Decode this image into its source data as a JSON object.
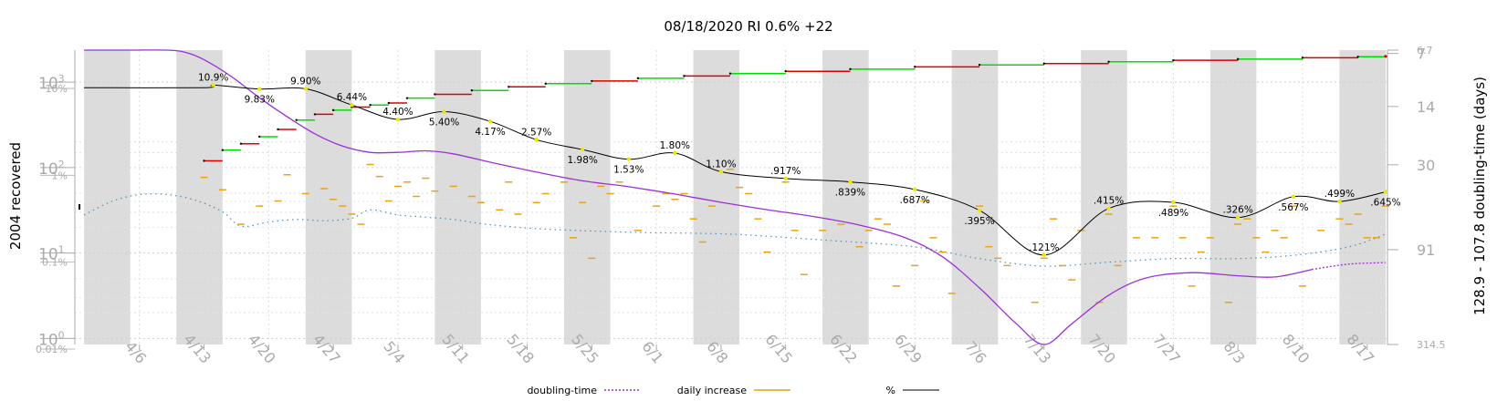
{
  "chart_data": {
    "type": "line",
    "title": "08/18/2020 RI 0.6% +22",
    "ylabel_left": "2004 recovered",
    "ylabel_right": "128.9 - 107.8 doubling-time (days)",
    "x_tick_labels": [
      "4/6",
      "4/13",
      "4/20",
      "4/27",
      "5/4",
      "5/11",
      "5/18",
      "5/25",
      "6/1",
      "6/8",
      "6/15",
      "6/22",
      "6/29",
      "7/6",
      "7/13",
      "7/20",
      "7/27",
      "8/3",
      "8/10",
      "8/17"
    ],
    "left_axis_ticks": [
      {
        "base": "10",
        "exp": "3"
      },
      {
        "base": "10",
        "exp": "2"
      },
      {
        "base": "10",
        "exp": "1"
      },
      {
        "base": "10",
        "exp": "0"
      }
    ],
    "left_pct_ticks": [
      "10%",
      "1%",
      "0.1%",
      "0.01%"
    ],
    "right_axis_ticks": [
      "6.7",
      "7",
      "14",
      "30",
      "91",
      "314.5"
    ],
    "legend": [
      {
        "label": "doubling-time",
        "color": "#9b30d9",
        "style": "dotted"
      },
      {
        "label": "daily increase",
        "color": "#e8a317",
        "style": "solid"
      },
      {
        "label": "%",
        "color": "#000000",
        "style": "solid"
      }
    ],
    "percent_series": {
      "name": "%",
      "points": [
        {
          "day": 14,
          "value": 10.9,
          "label": "10.9%"
        },
        {
          "day": 19,
          "value": 9.83,
          "label": "9.83%"
        },
        {
          "day": 24,
          "value": 9.9,
          "label": "9.90%"
        },
        {
          "day": 29,
          "value": 6.44,
          "label": "6.44%"
        },
        {
          "day": 34,
          "value": 4.4,
          "label": "4.40%"
        },
        {
          "day": 39,
          "value": 5.4,
          "label": "5.40%"
        },
        {
          "day": 44,
          "value": 4.17,
          "label": "4.17%"
        },
        {
          "day": 49,
          "value": 2.57,
          "label": "2.57%"
        },
        {
          "day": 54,
          "value": 1.98,
          "label": "1.98%"
        },
        {
          "day": 59,
          "value": 1.53,
          "label": "1.53%"
        },
        {
          "day": 64,
          "value": 1.8,
          "label": "1.80%"
        },
        {
          "day": 69,
          "value": 1.1,
          "label": "1.10%"
        },
        {
          "day": 76,
          "value": 0.917,
          "label": ".917%"
        },
        {
          "day": 83,
          "value": 0.839,
          "label": ".839%"
        },
        {
          "day": 90,
          "value": 0.687,
          "label": ".687%"
        },
        {
          "day": 97,
          "value": 0.395,
          "label": ".395%"
        },
        {
          "day": 104,
          "value": 0.121,
          "label": ".121%"
        },
        {
          "day": 111,
          "value": 0.415,
          "label": ".415%"
        },
        {
          "day": 118,
          "value": 0.489,
          "label": ".489%"
        },
        {
          "day": 125,
          "value": 0.326,
          "label": ".326%"
        },
        {
          "day": 131,
          "value": 0.567,
          "label": ".567%"
        },
        {
          "day": 136,
          "value": 0.499,
          "label": ".499%"
        },
        {
          "day": 141,
          "value": 0.645,
          "label": ".645%"
        }
      ]
    },
    "recovered_cumulative": [
      {
        "day": 13,
        "value": 120
      },
      {
        "day": 15,
        "value": 160
      },
      {
        "day": 17,
        "value": 190
      },
      {
        "day": 19,
        "value": 230
      },
      {
        "day": 21,
        "value": 280
      },
      {
        "day": 23,
        "value": 360
      },
      {
        "day": 25,
        "value": 420
      },
      {
        "day": 27,
        "value": 470
      },
      {
        "day": 29,
        "value": 510
      },
      {
        "day": 31,
        "value": 540
      },
      {
        "day": 33,
        "value": 570
      },
      {
        "day": 35,
        "value": 650
      },
      {
        "day": 38,
        "value": 720
      },
      {
        "day": 42,
        "value": 800
      },
      {
        "day": 46,
        "value": 880
      },
      {
        "day": 50,
        "value": 960
      },
      {
        "day": 55,
        "value": 1030
      },
      {
        "day": 60,
        "value": 1110
      },
      {
        "day": 65,
        "value": 1180
      },
      {
        "day": 70,
        "value": 1260
      },
      {
        "day": 76,
        "value": 1340
      },
      {
        "day": 83,
        "value": 1420
      },
      {
        "day": 90,
        "value": 1510
      },
      {
        "day": 97,
        "value": 1590
      },
      {
        "day": 104,
        "value": 1650
      },
      {
        "day": 111,
        "value": 1730
      },
      {
        "day": 118,
        "value": 1800
      },
      {
        "day": 125,
        "value": 1860
      },
      {
        "day": 132,
        "value": 1930
      },
      {
        "day": 138,
        "value": 1980
      },
      {
        "day": 141,
        "value": 2004
      }
    ],
    "daily_increase": [
      {
        "day": 13,
        "value": 45
      },
      {
        "day": 15,
        "value": 33
      },
      {
        "day": 17,
        "value": 14
      },
      {
        "day": 19,
        "value": 22
      },
      {
        "day": 21,
        "value": 25
      },
      {
        "day": 22,
        "value": 48
      },
      {
        "day": 24,
        "value": 30
      },
      {
        "day": 26,
        "value": 34
      },
      {
        "day": 27,
        "value": 26
      },
      {
        "day": 28,
        "value": 22
      },
      {
        "day": 29,
        "value": 18
      },
      {
        "day": 30,
        "value": 14
      },
      {
        "day": 31,
        "value": 62
      },
      {
        "day": 32,
        "value": 46
      },
      {
        "day": 33,
        "value": 25
      },
      {
        "day": 34,
        "value": 36
      },
      {
        "day": 35,
        "value": 40
      },
      {
        "day": 36,
        "value": 28
      },
      {
        "day": 37,
        "value": 44
      },
      {
        "day": 38,
        "value": 32
      },
      {
        "day": 40,
        "value": 36
      },
      {
        "day": 42,
        "value": 28
      },
      {
        "day": 43,
        "value": 24
      },
      {
        "day": 45,
        "value": 20
      },
      {
        "day": 46,
        "value": 40
      },
      {
        "day": 47,
        "value": 18
      },
      {
        "day": 49,
        "value": 24
      },
      {
        "day": 50,
        "value": 30
      },
      {
        "day": 52,
        "value": 40
      },
      {
        "day": 53,
        "value": 10
      },
      {
        "day": 54,
        "value": 24
      },
      {
        "day": 55,
        "value": 6
      },
      {
        "day": 56,
        "value": 36
      },
      {
        "day": 57,
        "value": 30
      },
      {
        "day": 58,
        "value": 40
      },
      {
        "day": 60,
        "value": 12
      },
      {
        "day": 62,
        "value": 22
      },
      {
        "day": 63,
        "value": 30
      },
      {
        "day": 64,
        "value": 26
      },
      {
        "day": 65,
        "value": 30
      },
      {
        "day": 66,
        "value": 16
      },
      {
        "day": 67,
        "value": 9
      },
      {
        "day": 68,
        "value": 22
      },
      {
        "day": 70,
        "value": 55
      },
      {
        "day": 71,
        "value": 35
      },
      {
        "day": 72,
        "value": 30
      },
      {
        "day": 73,
        "value": 16
      },
      {
        "day": 74,
        "value": 7
      },
      {
        "day": 76,
        "value": 40
      },
      {
        "day": 77,
        "value": 12
      },
      {
        "day": 78,
        "value": 4
      },
      {
        "day": 80,
        "value": 12
      },
      {
        "day": 82,
        "value": 14
      },
      {
        "day": 83,
        "value": 40
      },
      {
        "day": 84,
        "value": 8
      },
      {
        "day": 85,
        "value": 12
      },
      {
        "day": 86,
        "value": 16
      },
      {
        "day": 87,
        "value": 14
      },
      {
        "day": 88,
        "value": 3
      },
      {
        "day": 90,
        "value": 5
      },
      {
        "day": 91,
        "value": 25
      },
      {
        "day": 92,
        "value": 10
      },
      {
        "day": 93,
        "value": 7
      },
      {
        "day": 94,
        "value": 2.5
      },
      {
        "day": 97,
        "value": 22
      },
      {
        "day": 98,
        "value": 8
      },
      {
        "day": 99,
        "value": 6
      },
      {
        "day": 100,
        "value": 5
      },
      {
        "day": 103,
        "value": 2
      },
      {
        "day": 104,
        "value": 6
      },
      {
        "day": 105,
        "value": 16
      },
      {
        "day": 106,
        "value": 5
      },
      {
        "day": 107,
        "value": 3.5
      },
      {
        "day": 108,
        "value": 12
      },
      {
        "day": 110,
        "value": 2
      },
      {
        "day": 111,
        "value": 18
      },
      {
        "day": 112,
        "value": 5
      },
      {
        "day": 114,
        "value": 10
      },
      {
        "day": 116,
        "value": 10
      },
      {
        "day": 118,
        "value": 22
      },
      {
        "day": 119,
        "value": 10
      },
      {
        "day": 120,
        "value": 3
      },
      {
        "day": 121,
        "value": 7
      },
      {
        "day": 122,
        "value": 10
      },
      {
        "day": 124,
        "value": 2
      },
      {
        "day": 125,
        "value": 14
      },
      {
        "day": 126,
        "value": 16
      },
      {
        "day": 127,
        "value": 10
      },
      {
        "day": 128,
        "value": 7
      },
      {
        "day": 129,
        "value": 12
      },
      {
        "day": 130,
        "value": 10
      },
      {
        "day": 131,
        "value": 22
      },
      {
        "day": 132,
        "value": 3
      },
      {
        "day": 134,
        "value": 12
      },
      {
        "day": 136,
        "value": 16
      },
      {
        "day": 137,
        "value": 14
      },
      {
        "day": 138,
        "value": 18
      },
      {
        "day": 139,
        "value": 10
      },
      {
        "day": 140,
        "value": 10
      },
      {
        "day": 141,
        "value": 22
      }
    ],
    "doubling_time_days": [
      {
        "day": 0,
        "value": 6.7
      },
      {
        "day": 5,
        "value": 6.7
      },
      {
        "day": 9,
        "value": 6.7
      },
      {
        "day": 11,
        "value": 6.9
      },
      {
        "day": 13,
        "value": 7.6
      },
      {
        "day": 16,
        "value": 9.5
      },
      {
        "day": 19,
        "value": 12.5
      },
      {
        "day": 22,
        "value": 16
      },
      {
        "day": 25,
        "value": 20
      },
      {
        "day": 28,
        "value": 23.5
      },
      {
        "day": 31,
        "value": 25.5
      },
      {
        "day": 34,
        "value": 25.5
      },
      {
        "day": 37,
        "value": 25
      },
      {
        "day": 40,
        "value": 26
      },
      {
        "day": 44,
        "value": 29
      },
      {
        "day": 49,
        "value": 33
      },
      {
        "day": 54,
        "value": 37
      },
      {
        "day": 59,
        "value": 40
      },
      {
        "day": 64,
        "value": 44
      },
      {
        "day": 69,
        "value": 49
      },
      {
        "day": 74,
        "value": 54
      },
      {
        "day": 79,
        "value": 59
      },
      {
        "day": 84,
        "value": 66
      },
      {
        "day": 89,
        "value": 78
      },
      {
        "day": 93,
        "value": 100
      },
      {
        "day": 97,
        "value": 150
      },
      {
        "day": 101,
        "value": 240
      },
      {
        "day": 104,
        "value": 314.5
      },
      {
        "day": 107,
        "value": 240
      },
      {
        "day": 111,
        "value": 165
      },
      {
        "day": 115,
        "value": 132
      },
      {
        "day": 120,
        "value": 123
      },
      {
        "day": 125,
        "value": 128
      },
      {
        "day": 129,
        "value": 130
      },
      {
        "day": 133,
        "value": 118
      },
      {
        "day": 137,
        "value": 110
      },
      {
        "day": 141,
        "value": 107.8
      }
    ],
    "extrapolated_percent": [
      {
        "day": 0,
        "value": 0.35
      },
      {
        "day": 3,
        "value": 0.5
      },
      {
        "day": 6,
        "value": 0.6
      },
      {
        "day": 9,
        "value": 0.6
      },
      {
        "day": 12,
        "value": 0.52
      },
      {
        "day": 15,
        "value": 0.38
      },
      {
        "day": 17,
        "value": 0.26
      },
      {
        "day": 20,
        "value": 0.29
      },
      {
        "day": 23,
        "value": 0.31
      },
      {
        "day": 26,
        "value": 0.3
      },
      {
        "day": 29,
        "value": 0.32
      },
      {
        "day": 31,
        "value": 0.4
      },
      {
        "day": 34,
        "value": 0.35
      },
      {
        "day": 37,
        "value": 0.33
      },
      {
        "day": 40,
        "value": 0.31
      },
      {
        "day": 44,
        "value": 0.27
      },
      {
        "day": 50,
        "value": 0.24
      },
      {
        "day": 60,
        "value": 0.22
      },
      {
        "day": 70,
        "value": 0.21
      },
      {
        "day": 80,
        "value": 0.18
      },
      {
        "day": 90,
        "value": 0.15
      },
      {
        "day": 97,
        "value": 0.11
      },
      {
        "day": 104,
        "value": 0.09
      },
      {
        "day": 111,
        "value": 0.1
      },
      {
        "day": 118,
        "value": 0.11
      },
      {
        "day": 125,
        "value": 0.11
      },
      {
        "day": 131,
        "value": 0.12
      },
      {
        "day": 137,
        "value": 0.15
      },
      {
        "day": 141,
        "value": 0.21
      }
    ],
    "weekend_bands_start_days": [
      0,
      10,
      24,
      38,
      52,
      66,
      80,
      94,
      108,
      122,
      136
    ],
    "grid": true,
    "legend_position": "bottom",
    "colors": {
      "band": "#dcdcdc",
      "percent": "#000000",
      "doubling": "#9b30d9",
      "daily": "#e8a317",
      "extrapolated": "#4a90b8",
      "marker": "#e8e800",
      "rise": "#00dd00",
      "fall": "#dd0000",
      "axis_gray": "#aaaaaa"
    }
  }
}
